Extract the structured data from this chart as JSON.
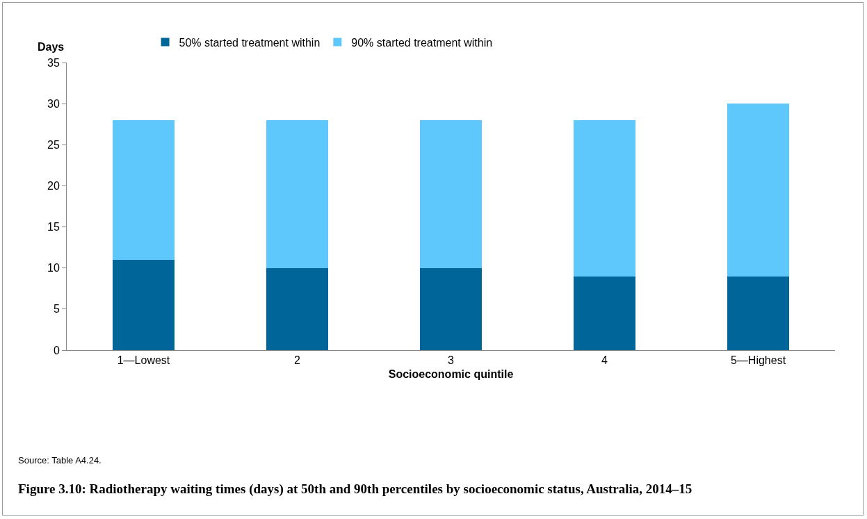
{
  "chart_data": {
    "type": "bar",
    "title": "Figure 3.10: Radiotherapy waiting times (days) at 50th and 90th percentiles by socioeconomic status, Australia, 2014–15",
    "xlabel": "Socioeconomic quintile",
    "ylabel": "Days",
    "annotations": [
      "Source: Table A4.24."
    ],
    "categories": [
      "1—Lowest",
      "2",
      "3",
      "4",
      "5—Highest"
    ],
    "series": [
      {
        "name": "50% started treatment within",
        "color": "#006699",
        "values": [
          11,
          10,
          10,
          9,
          9
        ]
      },
      {
        "name": "90% started treatment within",
        "color": "#5ec8fc",
        "values": [
          17,
          18,
          18,
          19,
          21
        ]
      }
    ],
    "stacked": true,
    "ylim": [
      0,
      35
    ],
    "yticks": [
      0,
      5,
      10,
      15,
      20,
      25,
      30,
      35
    ],
    "legend": "top"
  }
}
